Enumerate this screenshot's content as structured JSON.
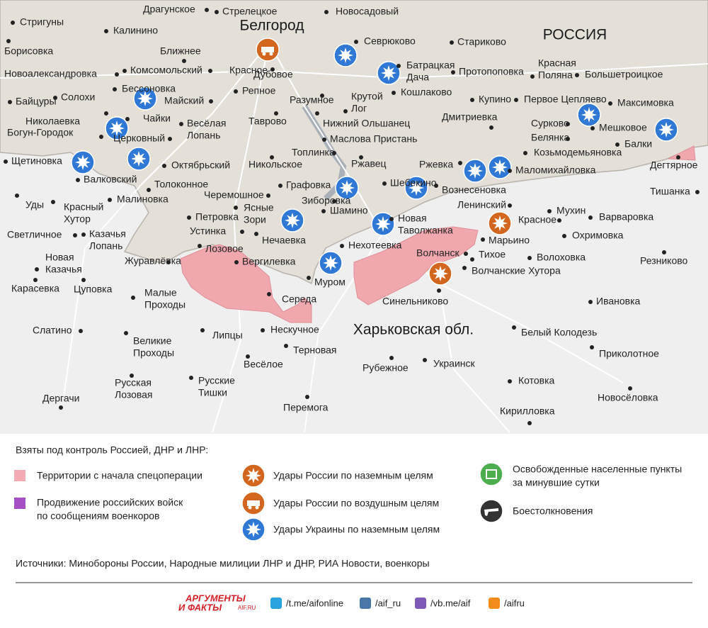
{
  "map": {
    "region_labels": [
      "Белгород",
      "РОССИЯ",
      "Харьковская обл."
    ],
    "places": [
      [
        "Драгунское"
      ],
      [
        "Стрелецкое"
      ],
      [
        "Новосадовый"
      ],
      [
        "Стригуны"
      ],
      [
        "Калинино"
      ],
      [
        "Борисовка"
      ],
      [
        "Севрюково"
      ],
      [
        "Стариково"
      ],
      [
        "Ближнее"
      ],
      [
        "Батрацкая",
        "Дача"
      ],
      [
        "Красная",
        "Поляна"
      ],
      [
        "Новоалександровка"
      ],
      [
        "Комсомольский"
      ],
      [
        "Красное"
      ],
      [
        "Дубовое"
      ],
      [
        "Протопоповка"
      ],
      [
        "Большетроицкое"
      ],
      [
        "Бессоновка"
      ],
      [
        "Байцуры"
      ],
      [
        "Солохи"
      ],
      [
        "Майский"
      ],
      [
        "Репное"
      ],
      [
        "Разумное"
      ],
      [
        "Крутой",
        "Лог"
      ],
      [
        "Кошлаково"
      ],
      [
        "Купино"
      ],
      [
        "Первое Цепляево"
      ],
      [
        "Максимовка"
      ],
      [
        "Николаевка"
      ],
      [
        "Чайки"
      ],
      [
        "Весёлая",
        "Лопань"
      ],
      [
        "Таврово"
      ],
      [
        "Нижний Ольшанец"
      ],
      [
        "Дмитриевка"
      ],
      [
        "Сурково"
      ],
      [
        "Мешковое"
      ],
      [
        "Богун-Городок"
      ],
      [
        "Церковный"
      ],
      [
        "Маслова Пристань"
      ],
      [
        "Белянка"
      ],
      [
        "Балки"
      ],
      [
        "Топлинка"
      ],
      [
        "Козьмодемьяновка"
      ],
      [
        "Щетиновка"
      ],
      [
        "Октябрьский"
      ],
      [
        "Никольское"
      ],
      [
        "Ржавец"
      ],
      [
        "Ржевка"
      ],
      [
        "Маломихайловка"
      ],
      [
        "Дегтярное"
      ],
      [
        "Валковский"
      ],
      [
        "Толоконное"
      ],
      [
        "Графовка"
      ],
      [
        "Шебекино"
      ],
      [
        "Вознесеновка"
      ],
      [
        "Тишанка"
      ],
      [
        "Уды"
      ],
      [
        "Красный",
        "Хутор"
      ],
      [
        "Малиновка"
      ],
      [
        "Черемошное"
      ],
      [
        "Ясные",
        "Зори"
      ],
      [
        "Зиборовка"
      ],
      [
        "Шамино"
      ],
      [
        "Ленинский"
      ],
      [
        "Мухин"
      ],
      [
        "Варваровка"
      ],
      [
        "Петровка"
      ],
      [
        "Новая",
        "Таволжанка"
      ],
      [
        "Красное"
      ],
      [
        "Охримовка"
      ],
      [
        "Светличное"
      ],
      [
        "Казачья",
        "Лопань"
      ],
      [
        "Устинка"
      ],
      [
        "Нечаевка"
      ],
      [
        "Марьино"
      ],
      [
        "Нехотеевка"
      ],
      [
        "Новая",
        "Казачья"
      ],
      [
        "Журавлёвка"
      ],
      [
        "Лозовое"
      ],
      [
        "Волчанск"
      ],
      [
        "Тихое"
      ],
      [
        "Волоховка"
      ],
      [
        "Резниково"
      ],
      [
        "Вергилевка"
      ],
      [
        "Волчанские Хутора"
      ],
      [
        "Карасевка"
      ],
      [
        "Цуповка"
      ],
      [
        "Муром"
      ],
      [
        "Малые",
        "Проходы"
      ],
      [
        "Середа"
      ],
      [
        "Синельниково"
      ],
      [
        "Ивановка"
      ],
      [
        "Нескучное"
      ],
      [
        "Белый Колодезь"
      ],
      [
        "Слатино"
      ],
      [
        "Великие",
        "Проходы"
      ],
      [
        "Липцы"
      ],
      [
        "Терновая"
      ],
      [
        "Приколотное"
      ],
      [
        "Весёлое"
      ],
      [
        "Рубежное"
      ],
      [
        "Украинск"
      ],
      [
        "Русская",
        "Лозовая"
      ],
      [
        "Русские",
        "Тишки"
      ],
      [
        "Котовка"
      ],
      [
        "Новосёловка"
      ],
      [
        "Дергачи"
      ],
      [
        "Перемога"
      ],
      [
        "Кирилловка"
      ]
    ]
  },
  "legend": {
    "heading": "Взяты под контроль Россией, ДНР и ЛНР:",
    "items": [
      [
        "Территории с начала спецоперации"
      ],
      [
        "Продвижение российских войск",
        "по сообщениям военкоров"
      ],
      [
        "Удары России по наземным целям"
      ],
      [
        "Удары России по воздушным целям"
      ],
      [
        "Удары Украины по наземным целям"
      ],
      [
        "Освобожденные населенные пункты",
        "за минувшие сутки"
      ],
      [
        "Боестолкновения"
      ]
    ]
  },
  "sources": "Источники: Минобороны России, Народные милиции ЛНР и ДНР, РИА Новости, военкоры",
  "footer": {
    "logo": [
      "АРГУМЕНТЫ",
      "И ФАКТЫ",
      "AIF.RU"
    ],
    "links": [
      "/t.me/aifonline",
      "/aif_ru",
      "/vb.me/aif",
      "/aifru"
    ]
  }
}
